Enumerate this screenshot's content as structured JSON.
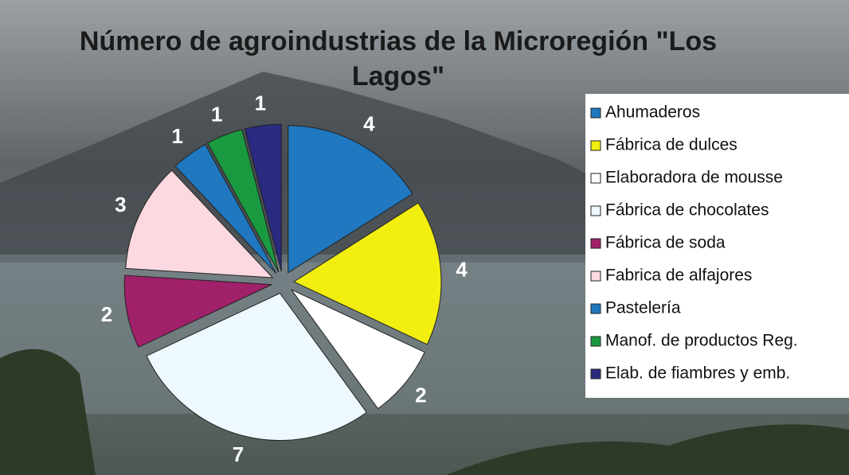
{
  "chart_data": {
    "type": "pie",
    "title": "Número de agroindustrias de la Microregión \"Los Lagos\"",
    "categories": [
      "Ahumaderos",
      "Fábrica de dulces",
      "Elaboradora de mousse",
      "Fábrica de chocolates",
      "Fábrica de soda",
      "Fabrica de alfajores",
      "Pastelería",
      "Manof. de productos Reg.",
      "Elab. de fiambres y emb."
    ],
    "values": [
      4,
      4,
      2,
      7,
      2,
      3,
      1,
      1,
      1
    ],
    "colors": [
      "#1f78c0",
      "#f2ee10",
      "#ffffff",
      "#eef8ff",
      "#a0206a",
      "#fcd8e0",
      "#1f78c0",
      "#1a9a40",
      "#2a2a80"
    ],
    "legend": "right"
  }
}
